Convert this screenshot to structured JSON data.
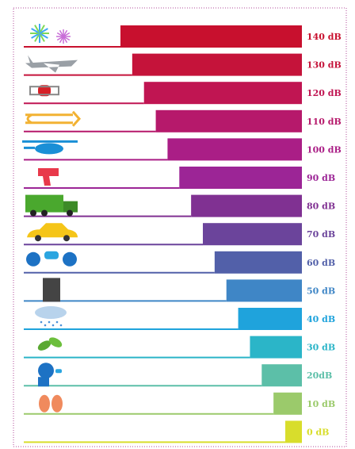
{
  "chart_data": {
    "type": "bar",
    "orientation": "horizontal",
    "values": [
      140,
      130,
      120,
      110,
      100,
      90,
      80,
      70,
      60,
      50,
      40,
      30,
      20,
      10,
      0
    ],
    "value_labels": [
      "140 dB",
      "130 dB",
      "120 dB",
      "110 dB",
      "100 dB",
      "90 dB",
      "80 dB",
      "70 dB",
      "60 dB",
      "50 dB",
      "40 dB",
      "30 dB",
      "20dB",
      "10 dB",
      "0 dB"
    ],
    "colors": [
      "#c8102e",
      "#c5133a",
      "#c01552",
      "#b6196b",
      "#aa1e86",
      "#9c2596",
      "#803192",
      "#6b449b",
      "#5260a9",
      "#3f86c6",
      "#1fa3dc",
      "#2bb5c8",
      "#5cbfa8",
      "#9bca6b",
      "#d8dd2c"
    ]
  }
}
